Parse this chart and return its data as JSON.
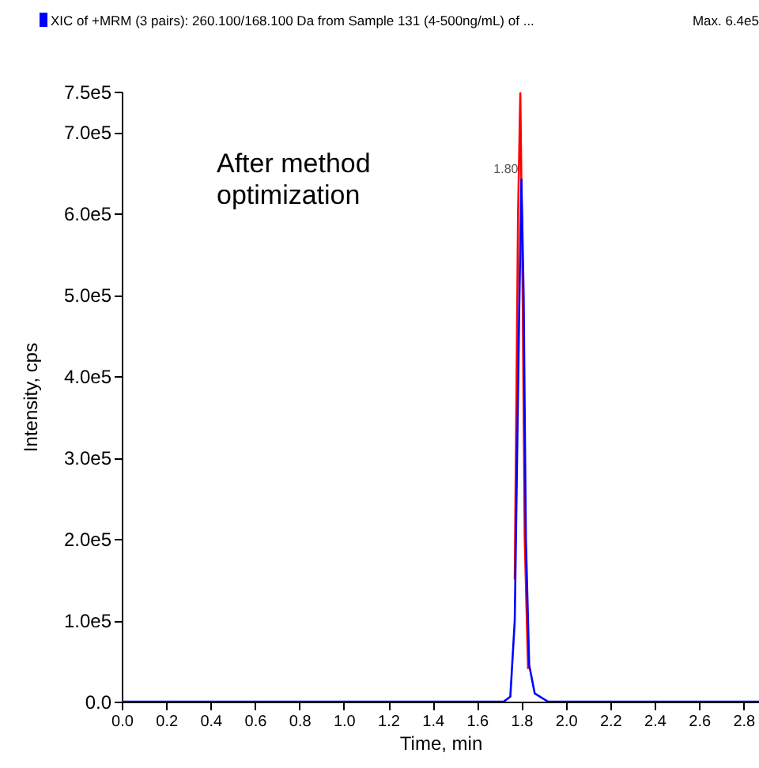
{
  "chart_data": {
    "type": "line",
    "title": "XIC of +MRM (3 pairs): 260.100/168.100 Da  from Sample 131 (4-500ng/mL) of ...",
    "xlabel": "Time, min",
    "ylabel": "Intensity, cps",
    "annotations": [
      "Max. 6.4e5",
      "After method optimization",
      {
        "text": "1.80",
        "x": 1.8,
        "y": 642000
      }
    ],
    "series": [
      {
        "color": "#ff0000",
        "x": [
          1.77,
          1.785,
          1.795,
          1.805,
          1.815,
          1.83
        ],
        "values": [
          150000,
          600000,
          748000,
          520000,
          200000,
          40000
        ]
      },
      {
        "color": "#0000ff",
        "x": [
          0,
          1.72,
          1.75,
          1.77,
          1.79,
          1.8,
          1.81,
          1.82,
          1.835,
          1.86,
          1.92,
          2.87
        ],
        "values": [
          0,
          0,
          6000,
          100000,
          480000,
          642000,
          500000,
          200000,
          45000,
          10000,
          0,
          0
        ]
      }
    ],
    "xlim": [
      0,
      2.87
    ],
    "ylim": [
      0,
      750000
    ],
    "xticks": [
      {
        "value": 0,
        "label": "0.0"
      },
      {
        "value": 0.2,
        "label": "0.2"
      },
      {
        "value": 0.4,
        "label": "0.4"
      },
      {
        "value": 0.6,
        "label": "0.6"
      },
      {
        "value": 0.8,
        "label": "0.8"
      },
      {
        "value": 1.0,
        "label": "1.0"
      },
      {
        "value": 1.2,
        "label": "1.2"
      },
      {
        "value": 1.4,
        "label": "1.4"
      },
      {
        "value": 1.6,
        "label": "1.6"
      },
      {
        "value": 1.8,
        "label": "1.8"
      },
      {
        "value": 2.0,
        "label": "2.0"
      },
      {
        "value": 2.2,
        "label": "2.2"
      },
      {
        "value": 2.4,
        "label": "2.4"
      },
      {
        "value": 2.6,
        "label": "2.6"
      },
      {
        "value": 2.8,
        "label": "2.8"
      }
    ],
    "yticks": [
      {
        "value": 0,
        "label": "0.0"
      },
      {
        "value": 100000,
        "label": "1.0e5"
      },
      {
        "value": 200000,
        "label": "2.0e5"
      },
      {
        "value": 300000,
        "label": "3.0e5"
      },
      {
        "value": 400000,
        "label": "4.0e5"
      },
      {
        "value": 500000,
        "label": "5.0e5"
      },
      {
        "value": 600000,
        "label": "6.0e5"
      },
      {
        "value": 700000,
        "label": "7.0e5"
      },
      {
        "value": 750000,
        "label": "7.5e5"
      }
    ],
    "grid": false,
    "marker": "none",
    "line_style": "solid"
  }
}
